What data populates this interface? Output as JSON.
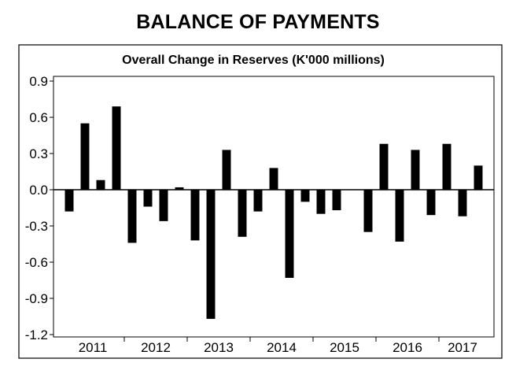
{
  "header": {
    "title": "BALANCE OF PAYMENTS"
  },
  "chart_data": {
    "type": "bar",
    "title": "Overall Change in Reserves (K'000 millions)",
    "years": [
      "2011",
      "2012",
      "2013",
      "2014",
      "2015",
      "2016",
      "2017"
    ],
    "quarters_per_year": 4,
    "values": [
      -0.18,
      0.55,
      0.08,
      0.69,
      -0.44,
      -0.14,
      -0.26,
      0.02,
      -0.42,
      -1.07,
      0.33,
      -0.39,
      -0.18,
      0.18,
      -0.73,
      -0.1,
      -0.2,
      -0.17,
      0.0,
      -0.35,
      0.38,
      -0.43,
      0.33,
      -0.21,
      0.38,
      -0.22,
      0.2
    ],
    "yticks": [
      "0.9",
      "0.6",
      "0.3",
      "0.0",
      "-0.3",
      "-0.6",
      "-0.9",
      "-1.2"
    ],
    "ylim": [
      -1.2,
      0.9
    ],
    "colors": {
      "bar": "#000000",
      "axis": "#000000",
      "background": "#ffffff"
    }
  }
}
